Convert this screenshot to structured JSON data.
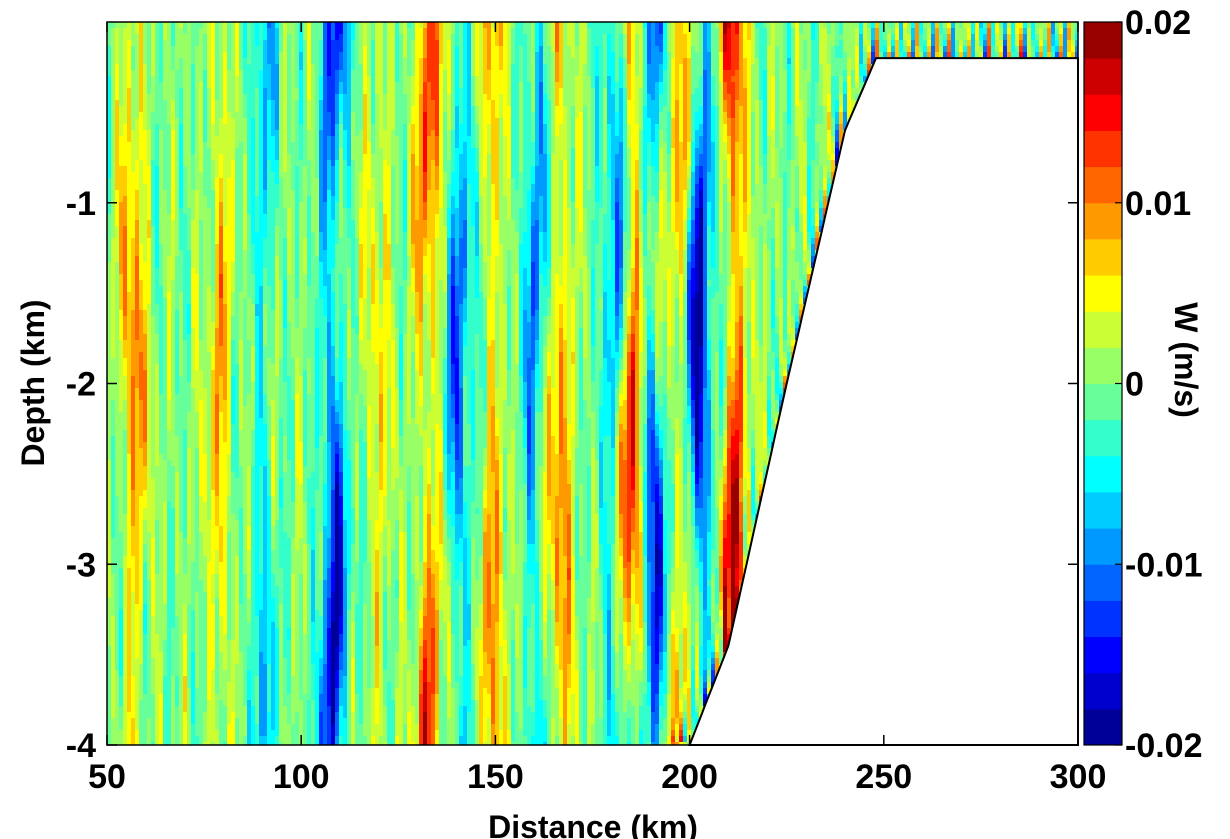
{
  "chart_data": {
    "type": "heatmap",
    "title": "",
    "xlabel": "Distance (km)",
    "ylabel": "Depth (km)",
    "xlim": [
      50,
      300
    ],
    "ylim": [
      -4,
      0
    ],
    "x_ticks": [
      50,
      100,
      150,
      200,
      250,
      300
    ],
    "x_tick_labels": [
      "50",
      "100",
      "150",
      "200",
      "250",
      "300"
    ],
    "y_ticks": [
      -1,
      -2,
      -3,
      -4
    ],
    "y_tick_labels": [
      "-1",
      "-2",
      "-3",
      "-4"
    ],
    "grid": false,
    "colorbar": {
      "label": "W (m/s)",
      "range": [
        -0.02,
        0.02
      ],
      "ticks": [
        0.02,
        0.01,
        0,
        -0.01,
        -0.02
      ],
      "tick_labels": [
        "0.02",
        "0.01",
        "0",
        "-0.01",
        "-0.02"
      ],
      "levels": 20,
      "colormap": "jet"
    },
    "topography": {
      "description_points_km": [
        [
          200,
          -4.0
        ],
        [
          210,
          -3.45
        ],
        [
          225,
          -2.0
        ],
        [
          240,
          -0.6
        ],
        [
          248,
          -0.2
        ],
        [
          300,
          -0.2
        ]
      ],
      "shelf_depth_km": -0.2,
      "fill": "#ffffff"
    },
    "field_features": [
      {
        "x_km": 57,
        "amplitude": 0.011
      },
      {
        "x_km": 79,
        "amplitude": 0.008
      },
      {
        "x_km": 90,
        "amplitude": -0.008
      },
      {
        "x_km": 108,
        "amplitude": -0.018
      },
      {
        "x_km": 120,
        "amplitude": 0.006
      },
      {
        "x_km": 133,
        "amplitude": 0.014
      },
      {
        "x_km": 141,
        "amplitude": -0.012
      },
      {
        "x_km": 150,
        "amplitude": 0.01
      },
      {
        "x_km": 160,
        "amplitude": -0.01
      },
      {
        "x_km": 167,
        "amplitude": 0.011
      },
      {
        "x_km": 180,
        "amplitude": -0.009
      },
      {
        "x_km": 186,
        "amplitude": 0.016
      },
      {
        "x_km": 190,
        "amplitude": -0.016
      },
      {
        "x_km": 197,
        "amplitude": 0.009
      },
      {
        "x_km": 203,
        "amplitude": -0.018
      },
      {
        "x_km": 212,
        "amplitude": 0.02
      }
    ]
  }
}
